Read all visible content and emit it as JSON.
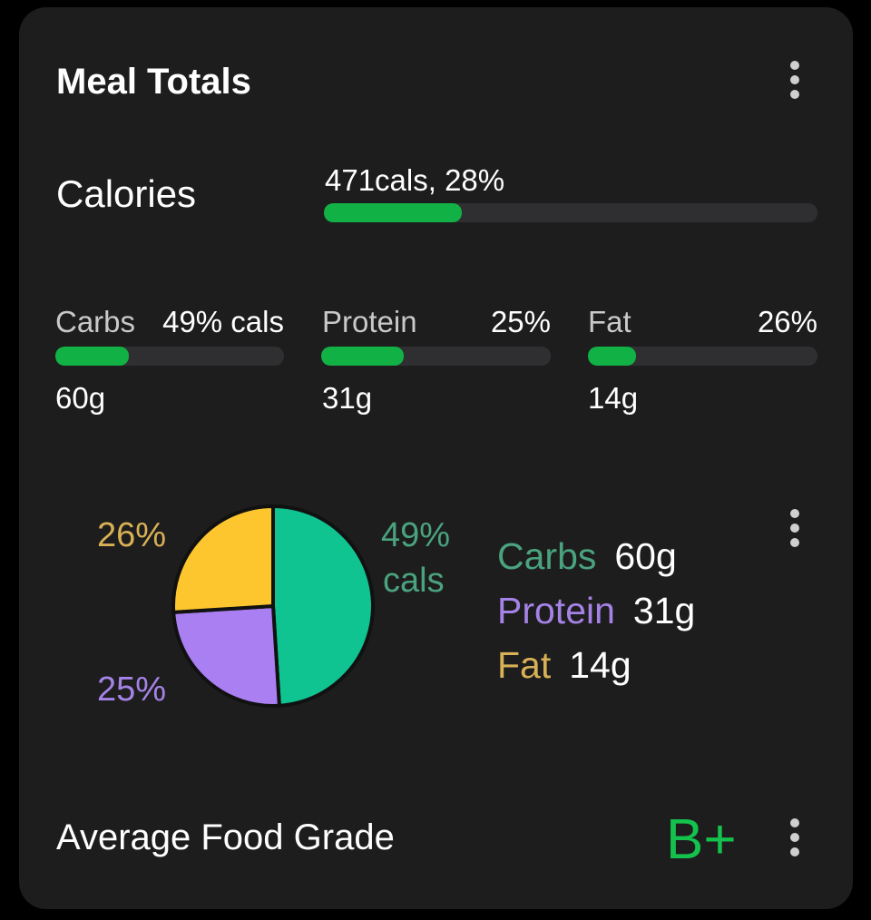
{
  "card": {
    "title": "Meal Totals"
  },
  "calories": {
    "label": "Calories",
    "value_text": "471cals, 28%",
    "progress": 0.28
  },
  "macros": [
    {
      "name": "Carbs",
      "pct_text": "49% cals",
      "grams": "60g",
      "progress": 0.32
    },
    {
      "name": "Protein",
      "pct_text": "25%",
      "grams": "31g",
      "progress": 0.36
    },
    {
      "name": "Fat",
      "pct_text": "26%",
      "grams": "14g",
      "progress": 0.21
    }
  ],
  "chart_data": {
    "type": "pie",
    "slices": [
      {
        "label": "Carbs",
        "value": 49,
        "color": "#10c491"
      },
      {
        "label": "Protein",
        "value": 25,
        "color": "#a97ff1"
      },
      {
        "label": "Fat",
        "value": 26,
        "color": "#fec62e"
      }
    ],
    "slice_labels": {
      "carbs": [
        "49%",
        "cals"
      ],
      "protein": "25%",
      "fat": "26%"
    },
    "label_colors": {
      "carbs": "#4aa37e",
      "protein": "#a583e6",
      "fat": "#d8b055"
    }
  },
  "legend": [
    {
      "name": "Carbs",
      "value": "60g",
      "color": "#4aa37e"
    },
    {
      "name": "Protein",
      "value": "31g",
      "color": "#a583e6"
    },
    {
      "name": "Fat",
      "value": "14g",
      "color": "#d8b055"
    }
  ],
  "grade": {
    "label": "Average Food Grade",
    "value": "B+",
    "color": "#14c14c"
  },
  "colors": {
    "accent": "#12b145",
    "card_bg": "#1d1d1e",
    "track": "#2f2f31"
  },
  "icons": {
    "menu": "more-vertical-icon"
  }
}
